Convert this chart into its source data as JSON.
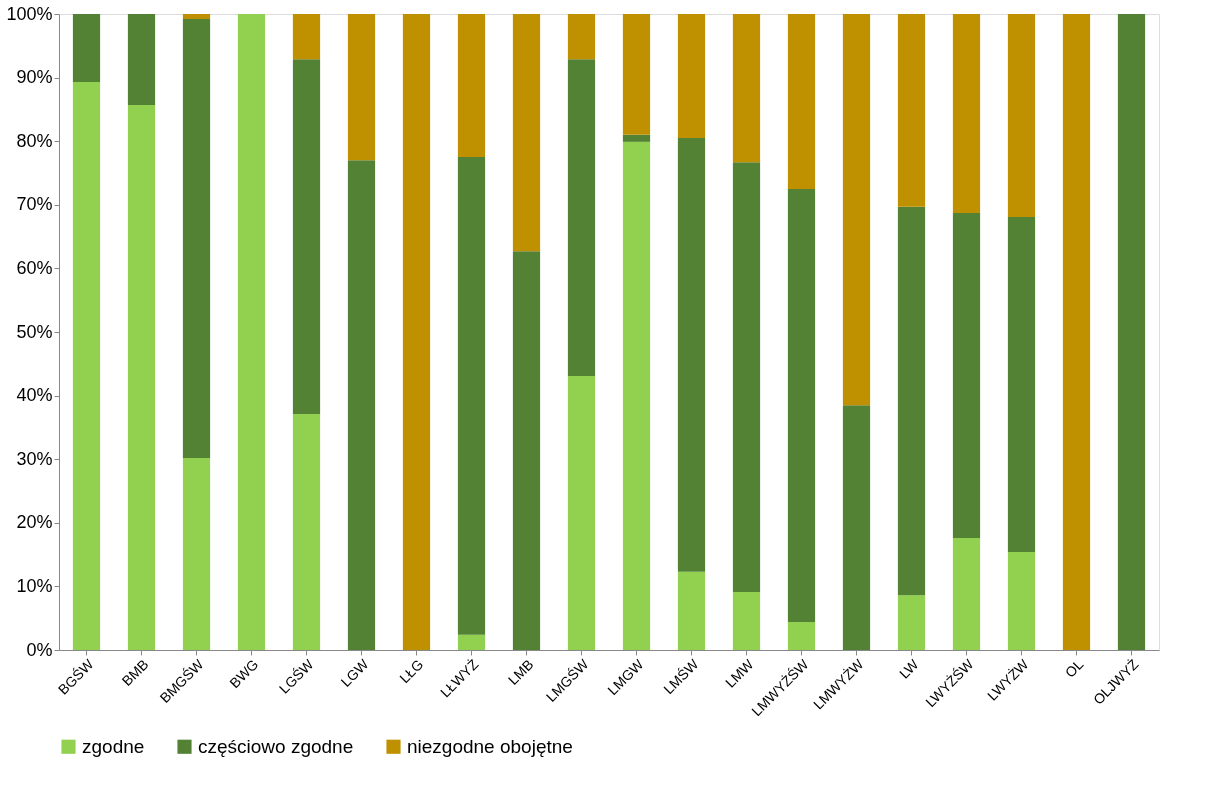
{
  "chart_data": {
    "type": "bar",
    "stacked": true,
    "categories": [
      "BGŚW",
      "BMB",
      "BMGŚW",
      "BWG",
      "LGŚW",
      "LGW",
      "LŁG",
      "LŁWYŻ",
      "LMB",
      "LMGŚW",
      "LMGW",
      "LMŚW",
      "LMW",
      "LMWYŻŚW",
      "LMWYŻW",
      "LW",
      "LWYŻŚW",
      "LWYŻW",
      "OL",
      "OLJWYŻ"
    ],
    "series": [
      {
        "name": "zgodne",
        "color": "#92d050",
        "values": [
          89.3,
          85.7,
          30.2,
          100,
          37.1,
          null,
          null,
          2.4,
          null,
          43.1,
          79.9,
          12.3,
          9.1,
          4.4,
          null,
          8.6,
          17.6,
          15.4,
          null,
          null
        ]
      },
      {
        "name": "częściowo zgodne",
        "color": "#548235",
        "values": [
          10.7,
          14.3,
          69.0,
          null,
          55.8,
          77.0,
          null,
          75.1,
          62.7,
          49.8,
          1.1,
          68.2,
          67.6,
          68.1,
          38.5,
          61.1,
          51.1,
          52.7,
          null,
          100
        ]
      },
      {
        "name": "niezgodne obojętne",
        "color": "#bf9000",
        "values": [
          null,
          null,
          0.8,
          null,
          7.1,
          23.0,
          100,
          22.5,
          37.3,
          7.1,
          19.0,
          19.5,
          23.3,
          27.5,
          61.5,
          30.3,
          31.3,
          31.9,
          100,
          null
        ]
      }
    ],
    "ylim": [
      0,
      100
    ],
    "yticks": [
      {
        "value": 0,
        "label": "0%"
      },
      {
        "value": 10,
        "label": "10%"
      },
      {
        "value": 20,
        "label": "20%"
      },
      {
        "value": 30,
        "label": "30%"
      },
      {
        "value": 40,
        "label": "40%"
      },
      {
        "value": 50,
        "label": "50%"
      },
      {
        "value": 60,
        "label": "60%"
      },
      {
        "value": 70,
        "label": "70%"
      },
      {
        "value": 80,
        "label": "80%"
      },
      {
        "value": 90,
        "label": "90%"
      },
      {
        "value": 100,
        "label": "100%"
      }
    ],
    "grid": false,
    "legend": "bottom left"
  }
}
